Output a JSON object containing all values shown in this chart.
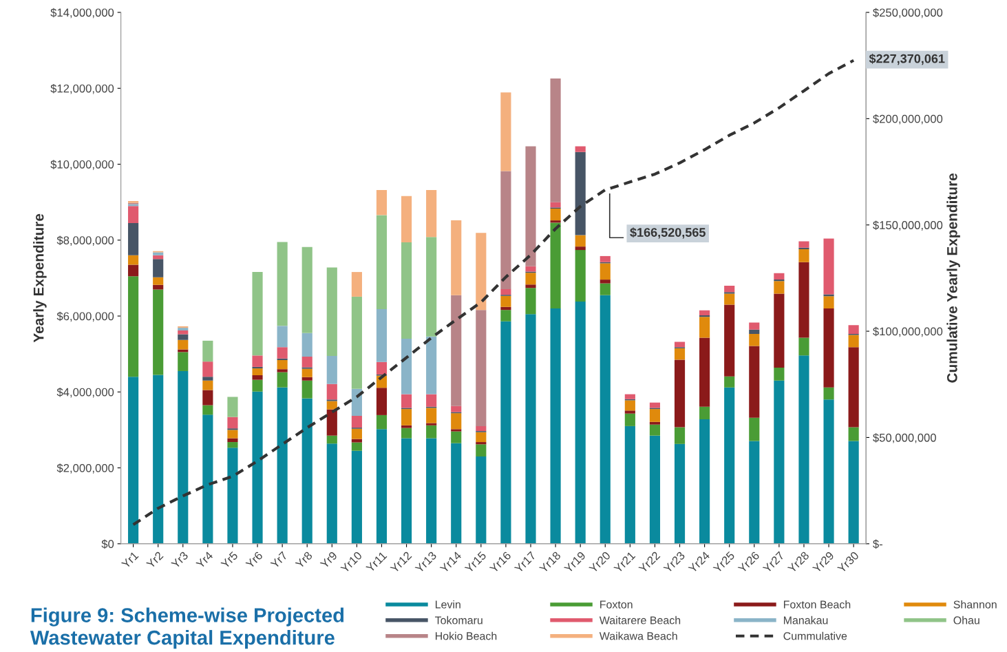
{
  "chart_data": {
    "type": "bar",
    "stacked": true,
    "title": "Figure 9: Scheme-wise Projected\nWastewater Capital Expenditure",
    "ylabel": "Yearly Expenditure",
    "y2label": "Cumulative Yearly Expenditure",
    "categories": [
      "Yr1",
      "Yr2",
      "Yr3",
      "Yr4",
      "Yr5",
      "Yr6",
      "Yr7",
      "Yr8",
      "Yr9",
      "Yr10",
      "Yr11",
      "Yr12",
      "Yr13",
      "Yr14",
      "Yr15",
      "Yr16",
      "Yr17",
      "Yr18",
      "Yr19",
      "Yr20",
      "Yr21",
      "Yr22",
      "Yr23",
      "Yr24",
      "Yr25",
      "Yr26",
      "Yr27",
      "Yr28",
      "Yr29",
      "Yr30"
    ],
    "ylim": [
      0,
      14000000
    ],
    "yticks": [
      {
        "value": 0,
        "label": "$0"
      },
      {
        "value": 2000000,
        "label": "$2,000,000"
      },
      {
        "value": 4000000,
        "label": "$4,000,000"
      },
      {
        "value": 6000000,
        "label": "$6,000,000"
      },
      {
        "value": 8000000,
        "label": "$8,000,000"
      },
      {
        "value": 10000000,
        "label": "$10,000,000"
      },
      {
        "value": 12000000,
        "label": "$12,000,000"
      },
      {
        "value": 14000000,
        "label": "$14,000,000"
      }
    ],
    "y2lim": [
      0,
      250000000
    ],
    "y2ticks": [
      {
        "value": 0,
        "label": "$-"
      },
      {
        "value": 50000000,
        "label": "$50,000,000"
      },
      {
        "value": 100000000,
        "label": "$100,000,000"
      },
      {
        "value": 150000000,
        "label": "$150,000,000"
      },
      {
        "value": 200000000,
        "label": "$200,000,000"
      },
      {
        "value": 250000000,
        "label": "$250,000,000"
      }
    ],
    "grid": false,
    "legend": "bottom",
    "series": [
      {
        "name": "Levin",
        "color": "#0a8a9e",
        "values": [
          4400000,
          4450000,
          4550000,
          3400000,
          2530000,
          4010000,
          4120000,
          3830000,
          2640000,
          2450000,
          3020000,
          2780000,
          2780000,
          2650000,
          2300000,
          5860000,
          6050000,
          6200000,
          6380000,
          6550000,
          3100000,
          2850000,
          2630000,
          3280000,
          4120000,
          2710000,
          4300000,
          4960000,
          3800000,
          2710000
        ]
      },
      {
        "name": "Foxton",
        "color": "#4a9c35",
        "values": [
          2650000,
          2250000,
          500000,
          250000,
          150000,
          310000,
          400000,
          470000,
          210000,
          220000,
          370000,
          270000,
          340000,
          310000,
          320000,
          300000,
          690000,
          2260000,
          1360000,
          310000,
          330000,
          290000,
          440000,
          330000,
          290000,
          610000,
          340000,
          470000,
          320000,
          360000
        ]
      },
      {
        "name": "Foxton Beach",
        "color": "#8b1a1a",
        "values": [
          300000,
          120000,
          70000,
          400000,
          100000,
          120000,
          80000,
          90000,
          690000,
          90000,
          720000,
          70000,
          60000,
          60000,
          60000,
          80000,
          90000,
          60000,
          90000,
          100000,
          80000,
          70000,
          1780000,
          1820000,
          1890000,
          1890000,
          1950000,
          1990000,
          2080000,
          2110000
        ]
      },
      {
        "name": "Shannon",
        "color": "#e08a0c",
        "values": [
          250000,
          200000,
          250000,
          250000,
          220000,
          180000,
          240000,
          220000,
          220000,
          270000,
          320000,
          430000,
          400000,
          420000,
          260000,
          290000,
          310000,
          310000,
          300000,
          430000,
          270000,
          340000,
          300000,
          550000,
          290000,
          320000,
          330000,
          340000,
          320000,
          320000
        ]
      },
      {
        "name": "Tokomaru",
        "color": "#475566",
        "values": [
          850000,
          480000,
          150000,
          100000,
          40000,
          40000,
          40000,
          40000,
          40000,
          30000,
          30000,
          30000,
          30000,
          30000,
          30000,
          30000,
          30000,
          30000,
          2190000,
          30000,
          30000,
          30000,
          30000,
          40000,
          40000,
          110000,
          40000,
          40000,
          50000,
          30000
        ]
      },
      {
        "name": "Waitarere Beach",
        "color": "#e05a6e",
        "values": [
          450000,
          100000,
          100000,
          400000,
          300000,
          300000,
          300000,
          280000,
          410000,
          310000,
          330000,
          360000,
          330000,
          160000,
          130000,
          150000,
          140000,
          140000,
          150000,
          160000,
          130000,
          140000,
          140000,
          130000,
          170000,
          190000,
          170000,
          170000,
          1470000,
          230000
        ]
      },
      {
        "name": "Manakau",
        "color": "#8ab4c8",
        "values": [
          50000,
          80000,
          70000,
          0,
          0,
          0,
          560000,
          620000,
          740000,
          710000,
          1390000,
          1460000,
          1520000,
          0,
          0,
          0,
          0,
          0,
          0,
          0,
          0,
          0,
          0,
          0,
          0,
          0,
          0,
          0,
          0,
          0
        ]
      },
      {
        "name": "Ohau",
        "color": "#90c488",
        "values": [
          0,
          0,
          0,
          550000,
          530000,
          2200000,
          2210000,
          2270000,
          2330000,
          2430000,
          2480000,
          2540000,
          2620000,
          0,
          0,
          0,
          0,
          0,
          0,
          0,
          0,
          0,
          0,
          0,
          0,
          0,
          0,
          0,
          0,
          0
        ]
      },
      {
        "name": "Hokio Beach",
        "color": "#b88488",
        "values": [
          30000,
          0,
          0,
          0,
          0,
          0,
          0,
          0,
          0,
          0,
          0,
          0,
          0,
          2920000,
          3060000,
          3110000,
          3160000,
          3260000,
          0,
          0,
          0,
          0,
          0,
          0,
          0,
          0,
          0,
          0,
          0,
          0
        ]
      },
      {
        "name": "Waikawa Beach",
        "color": "#f4b07e",
        "values": [
          50000,
          30000,
          40000,
          0,
          0,
          0,
          0,
          0,
          0,
          650000,
          660000,
          1220000,
          1240000,
          1970000,
          2030000,
          2070000,
          0,
          0,
          0,
          0,
          0,
          0,
          0,
          0,
          0,
          0,
          0,
          0,
          0,
          0
        ]
      },
      {
        "name": "Cummulative",
        "type": "line",
        "axis": "y2",
        "color": "#333333",
        "line_style": "dashed",
        "marker": "none",
        "values": [
          9000000,
          16700000,
          22500000,
          27800000,
          31700000,
          38900000,
          46800000,
          54600000,
          61900000,
          69100000,
          78400000,
          87600000,
          96900000,
          105400000,
          113600000,
          125500000,
          135900000,
          148200000,
          158700000,
          166500000,
          170200000,
          173900000,
          179200000,
          185400000,
          192200000,
          198000000,
          205100000,
          213100000,
          221200000,
          227400000
        ]
      }
    ],
    "annotations": [
      "$166,520,565",
      "$227,370,061"
    ]
  }
}
